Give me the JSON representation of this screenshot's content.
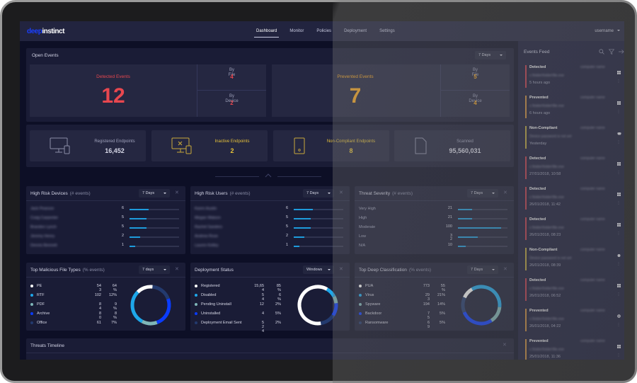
{
  "app": {
    "logo_part1": "deep",
    "logo_part2": "instinct",
    "nav": [
      {
        "label": "Dashboard",
        "active": true
      },
      {
        "label": "Monitor",
        "active": false
      },
      {
        "label": "Policies",
        "active": false
      },
      {
        "label": "Deployment",
        "active": false
      },
      {
        "label": "Settings",
        "active": false
      }
    ],
    "username": "username"
  },
  "open_events": {
    "title": "Open Events",
    "range": "7 Days",
    "detected": {
      "label": "Detected Events",
      "value": "12",
      "by_file_label": "By File",
      "by_file": "4",
      "by_device_label": "By Device",
      "by_device": "2",
      "color": "#e8474f"
    },
    "prevented": {
      "label": "Prevented Events",
      "value": "7",
      "by_file_label": "By File",
      "by_file": "5",
      "by_device_label": "By Device",
      "by_device": "4",
      "color": "#f5a623"
    }
  },
  "endpoints": [
    {
      "label": "Registered Endpoints",
      "value": "16,452",
      "icon": "desktop-mobile-icon",
      "color": "#b5b7cc"
    },
    {
      "label": "Inactive Endpoints",
      "value": "2",
      "icon": "desktop-x-icon",
      "color": "#e6c23a"
    },
    {
      "label": "Non-Compliant Endpoints",
      "value": "8",
      "icon": "mobile-icon",
      "color": "#e6c23a"
    },
    {
      "label": "Scanned",
      "value": "95,560,031",
      "icon": "file-icon",
      "color": "#b5b7cc"
    }
  ],
  "high_risk_devices": {
    "title": "High Risk Devices",
    "sub": "(# events)",
    "range": "7 Days",
    "rows": [
      {
        "name": "Jack Pearson",
        "count": "6",
        "pct": 38
      },
      {
        "name": "Craig Carpenter",
        "count": "5",
        "pct": 34
      },
      {
        "name": "Brandon Lynch",
        "count": "5",
        "pct": 34
      },
      {
        "name": "Jeremy Henry",
        "count": "2",
        "pct": 21
      },
      {
        "name": "Dennis Bennett",
        "count": "1",
        "pct": 12
      }
    ]
  },
  "high_risk_users": {
    "title": "High Risk Users",
    "sub": "(# events)",
    "range": "7 Days",
    "rows": [
      {
        "name": "Karen Austin",
        "count": "6",
        "pct": 38
      },
      {
        "name": "Megan Watson",
        "count": "5",
        "pct": 34
      },
      {
        "name": "Rachel Sanders",
        "count": "5",
        "pct": 34
      },
      {
        "name": "Andrew Rose",
        "count": "2",
        "pct": 21
      },
      {
        "name": "Lauren Kelley",
        "count": "1",
        "pct": 12
      }
    ]
  },
  "threat_severity": {
    "title": "Threat Severity",
    "sub": "(# events)",
    "range": "7 Days",
    "rows": [
      {
        "name": "Very High",
        "count": "21",
        "pct": 29
      },
      {
        "name": "High",
        "count": "21",
        "pct": 29
      },
      {
        "name": "Moderate",
        "count": "100",
        "pct": 87
      },
      {
        "name": "Low",
        "count": "3\n2",
        "pct": 40
      },
      {
        "name": "N/A",
        "count": "10",
        "pct": 15
      }
    ]
  },
  "top_file_types": {
    "title": "Top Malicious File Types",
    "sub": "(% events)",
    "range": "7 days",
    "rows": [
      {
        "name": "PE",
        "count": "54\n3",
        "pct": "64\n%",
        "color": "#ffffff"
      },
      {
        "name": "RTF",
        "count": "102",
        "pct": "12%",
        "color": "#1ea7ea"
      },
      {
        "name": "PDF",
        "count": "8\n4",
        "pct": "9\n%",
        "color": "#7fb6b8"
      },
      {
        "name": "Archive",
        "count": "8\n0",
        "pct": "8\n%",
        "color": "#0a3cff"
      },
      {
        "name": "Office",
        "count": "61",
        "pct": "7%",
        "color": "#233a6e"
      }
    ],
    "donut": [
      {
        "color": "#ffffff",
        "pct": 14
      },
      {
        "color": "#233a6e",
        "pct": 18
      },
      {
        "color": "#0a3cff",
        "pct": 25
      },
      {
        "color": "#7fb6b8",
        "pct": 13
      },
      {
        "color": "#1ea7ea",
        "pct": 30
      }
    ]
  },
  "deployment_status": {
    "title": "Deployment Status",
    "range": "Windows",
    "rows": [
      {
        "name": "Registered",
        "count": "15,65\n4",
        "pct": "85\n%",
        "color": "#ffffff"
      },
      {
        "name": "Disabled",
        "count": "5\n4",
        "pct": "6\n%",
        "color": "#1ea7ea"
      },
      {
        "name": "Pending Uninstall",
        "count": "12",
        "pct": "2%",
        "color": "#7fb6b8"
      },
      {
        "name": "Uninstalled",
        "count": "4",
        "pct": "5%",
        "color": "#0a3cff"
      },
      {
        "name": "Deployment Email Sent",
        "count": "5\n2\n4",
        "pct": "2%",
        "color": "#233a6e"
      }
    ],
    "donut": [
      {
        "color": "#1ea7ea",
        "pct": 9
      },
      {
        "color": "#7fb6b8",
        "pct": 6
      },
      {
        "color": "#0a3cff",
        "pct": 11
      },
      {
        "color": "#233a6e",
        "pct": 13
      },
      {
        "color": "#ffffff",
        "pct": 61
      }
    ]
  },
  "top_deep_classification": {
    "title": "Top Deep Classification",
    "sub": "(% events)",
    "range": "7 Days",
    "rows": [
      {
        "name": "PUA",
        "count": "773",
        "pct": "55\n%",
        "color": "#ffffff"
      },
      {
        "name": "Virus",
        "count": "29\n3",
        "pct": "21%",
        "color": "#1ea7ea"
      },
      {
        "name": "Spyware",
        "count": "194",
        "pct": "14%",
        "color": "#7fb6b8"
      },
      {
        "name": "Backdoor",
        "count": "7\n5",
        "pct": "5%",
        "color": "#0a3cff"
      },
      {
        "name": "Ransomware",
        "count": "6\n9",
        "pct": "5%",
        "color": "#233a6e"
      }
    ],
    "donut": [
      {
        "color": "#1ea7ea",
        "pct": 35
      },
      {
        "color": "#7fb6b8",
        "pct": 14
      },
      {
        "color": "#0a3cff",
        "pct": 28
      },
      {
        "color": "#233a6e",
        "pct": 13
      },
      {
        "color": "#ffffff",
        "pct": 10
      }
    ]
  },
  "threats_timeline": {
    "title": "Threats Timeline"
  },
  "events_feed": {
    "title": "Events Feed",
    "items": [
      {
        "type": "Detected",
        "computer": "computer name",
        "detail": "c:\\folder\\folder\\file.exe",
        "time": "5 hours ago",
        "color": "#c0394a",
        "os": "windows"
      },
      {
        "type": "Prevented",
        "computer": "computer name",
        "detail": "c:\\folder\\folder\\file.exe",
        "time": "6 hours ago",
        "color": "#c98a3a",
        "os": "windows"
      },
      {
        "type": "Non-Compliant",
        "computer": "computer name",
        "detail": "Device password is not set",
        "time": "Yesterday",
        "color": "#b8a23a",
        "os": "android"
      },
      {
        "type": "Detected",
        "computer": "computer name",
        "detail": "c:\\folder\\folder\\file.exe",
        "time": "27/01/2018, 10:58",
        "color": "#c0394a",
        "os": "windows"
      },
      {
        "type": "Detected",
        "computer": "computer name",
        "detail": "c:\\folder\\folder\\file.exe",
        "time": "26/01/2018, 11:42",
        "color": "#c0394a",
        "os": "windows"
      },
      {
        "type": "Detected",
        "computer": "computer name",
        "detail": "c:\\folder\\folder\\file.exe",
        "time": "26/01/2018, 08:23",
        "color": "#c0394a",
        "os": "windows"
      },
      {
        "type": "Non-Compliant",
        "computer": "computer name",
        "detail": "Device password is not set",
        "time": "26/01/2018, 08:39",
        "color": "#b8a23a",
        "os": "apple"
      },
      {
        "type": "Detected",
        "computer": "computer name",
        "detail": "c:\\folder\\folder\\file.exe",
        "time": "26/01/2018, 06:52",
        "color": "#c0394a",
        "os": "windows"
      },
      {
        "type": "Prevented",
        "computer": "computer name",
        "detail": "c:\\folder\\folder\\file.exe",
        "time": "26/01/2018, 04:22",
        "color": "#c98a3a",
        "os": "chrome"
      },
      {
        "type": "Prevented",
        "computer": "computer name",
        "detail": "c:\\folder\\folder\\file.exe",
        "time": "25/01/2018, 11:36",
        "color": "#c98a3a",
        "os": "windows"
      }
    ]
  }
}
